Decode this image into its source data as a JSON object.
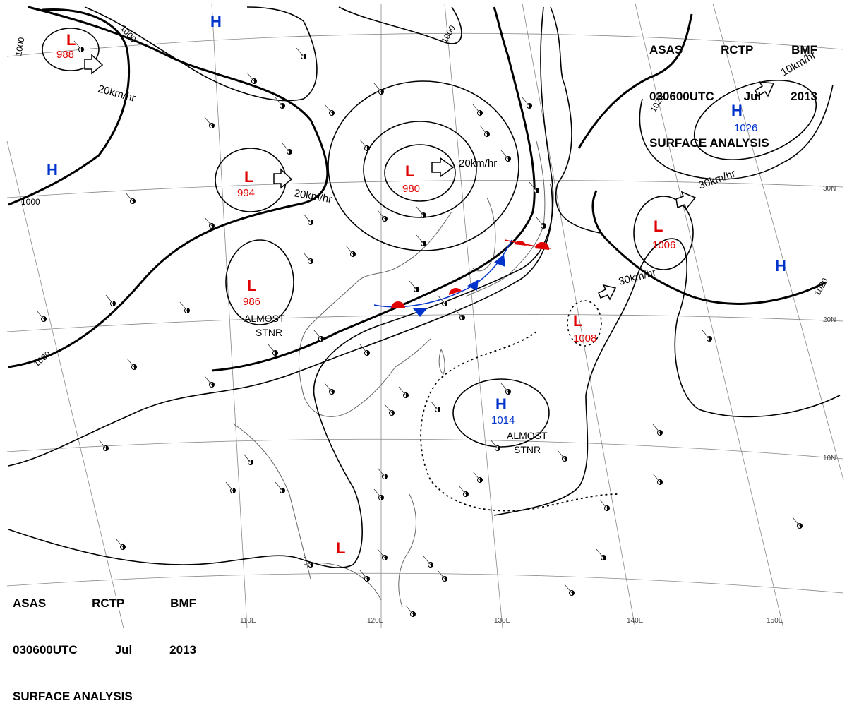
{
  "header": {
    "line1": [
      "ASAS",
      "RCTP",
      "BMF"
    ],
    "line2": [
      "030600UTC",
      "Jul",
      "2013"
    ],
    "line3": "SURFACE ANALYSIS"
  },
  "isobars": [
    "1000",
    "1000",
    "1000",
    "1000",
    "1000",
    "1020",
    "1020"
  ],
  "lows": [
    {
      "symbol": "L",
      "pressure": "988"
    },
    {
      "symbol": "L",
      "pressure": "994"
    },
    {
      "symbol": "L",
      "pressure": "980"
    },
    {
      "symbol": "L",
      "pressure": "986"
    },
    {
      "symbol": "L",
      "pressure": "1006"
    },
    {
      "symbol": "L",
      "pressure": "1008"
    },
    {
      "symbol": "L",
      "pressure": ""
    }
  ],
  "highs": [
    {
      "symbol": "H",
      "pressure": "1026"
    },
    {
      "symbol": "H",
      "pressure": "1014"
    },
    {
      "symbol": "H",
      "pressure": ""
    },
    {
      "symbol": "H",
      "pressure": ""
    },
    {
      "symbol": "H",
      "pressure": ""
    }
  ],
  "motion_labels": [
    "20km/hr",
    "20km/hr",
    "20km/hr",
    "30km/hr",
    "30km/hr",
    "10km/hr"
  ],
  "stationary_labels": [
    {
      "line1": "ALMOST",
      "line2": "STNR"
    },
    {
      "line1": "ALMOST",
      "line2": "STNR"
    }
  ],
  "lon_labels": [
    "110E",
    "120E",
    "130E",
    "140E",
    "150E"
  ],
  "lat_labels": [
    "30N",
    "20N",
    "10N"
  ],
  "colors": {
    "low": "#e00000",
    "high": "#0033cc",
    "isobar": "#000000",
    "grid": "#888888",
    "coast": "#666666"
  }
}
